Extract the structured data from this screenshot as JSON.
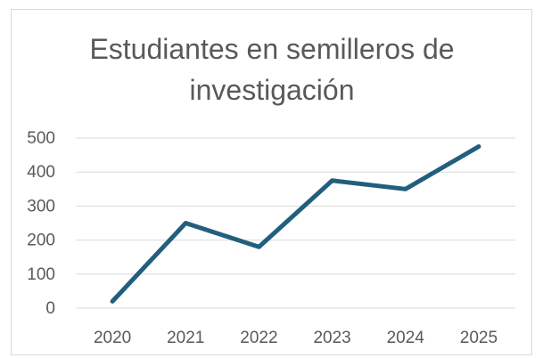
{
  "chart_data": {
    "type": "line",
    "title": "Estudiantes en semilleros de investigación",
    "categories": [
      "2020",
      "2021",
      "2022",
      "2023",
      "2024",
      "2025"
    ],
    "series": [
      {
        "name": "Estudiantes",
        "color": "#225e7e",
        "values": [
          20,
          250,
          180,
          375,
          350,
          475
        ]
      }
    ],
    "ylim": [
      0,
      500
    ],
    "yticks": [
      0,
      100,
      200,
      300,
      400,
      500
    ],
    "grid": true
  }
}
